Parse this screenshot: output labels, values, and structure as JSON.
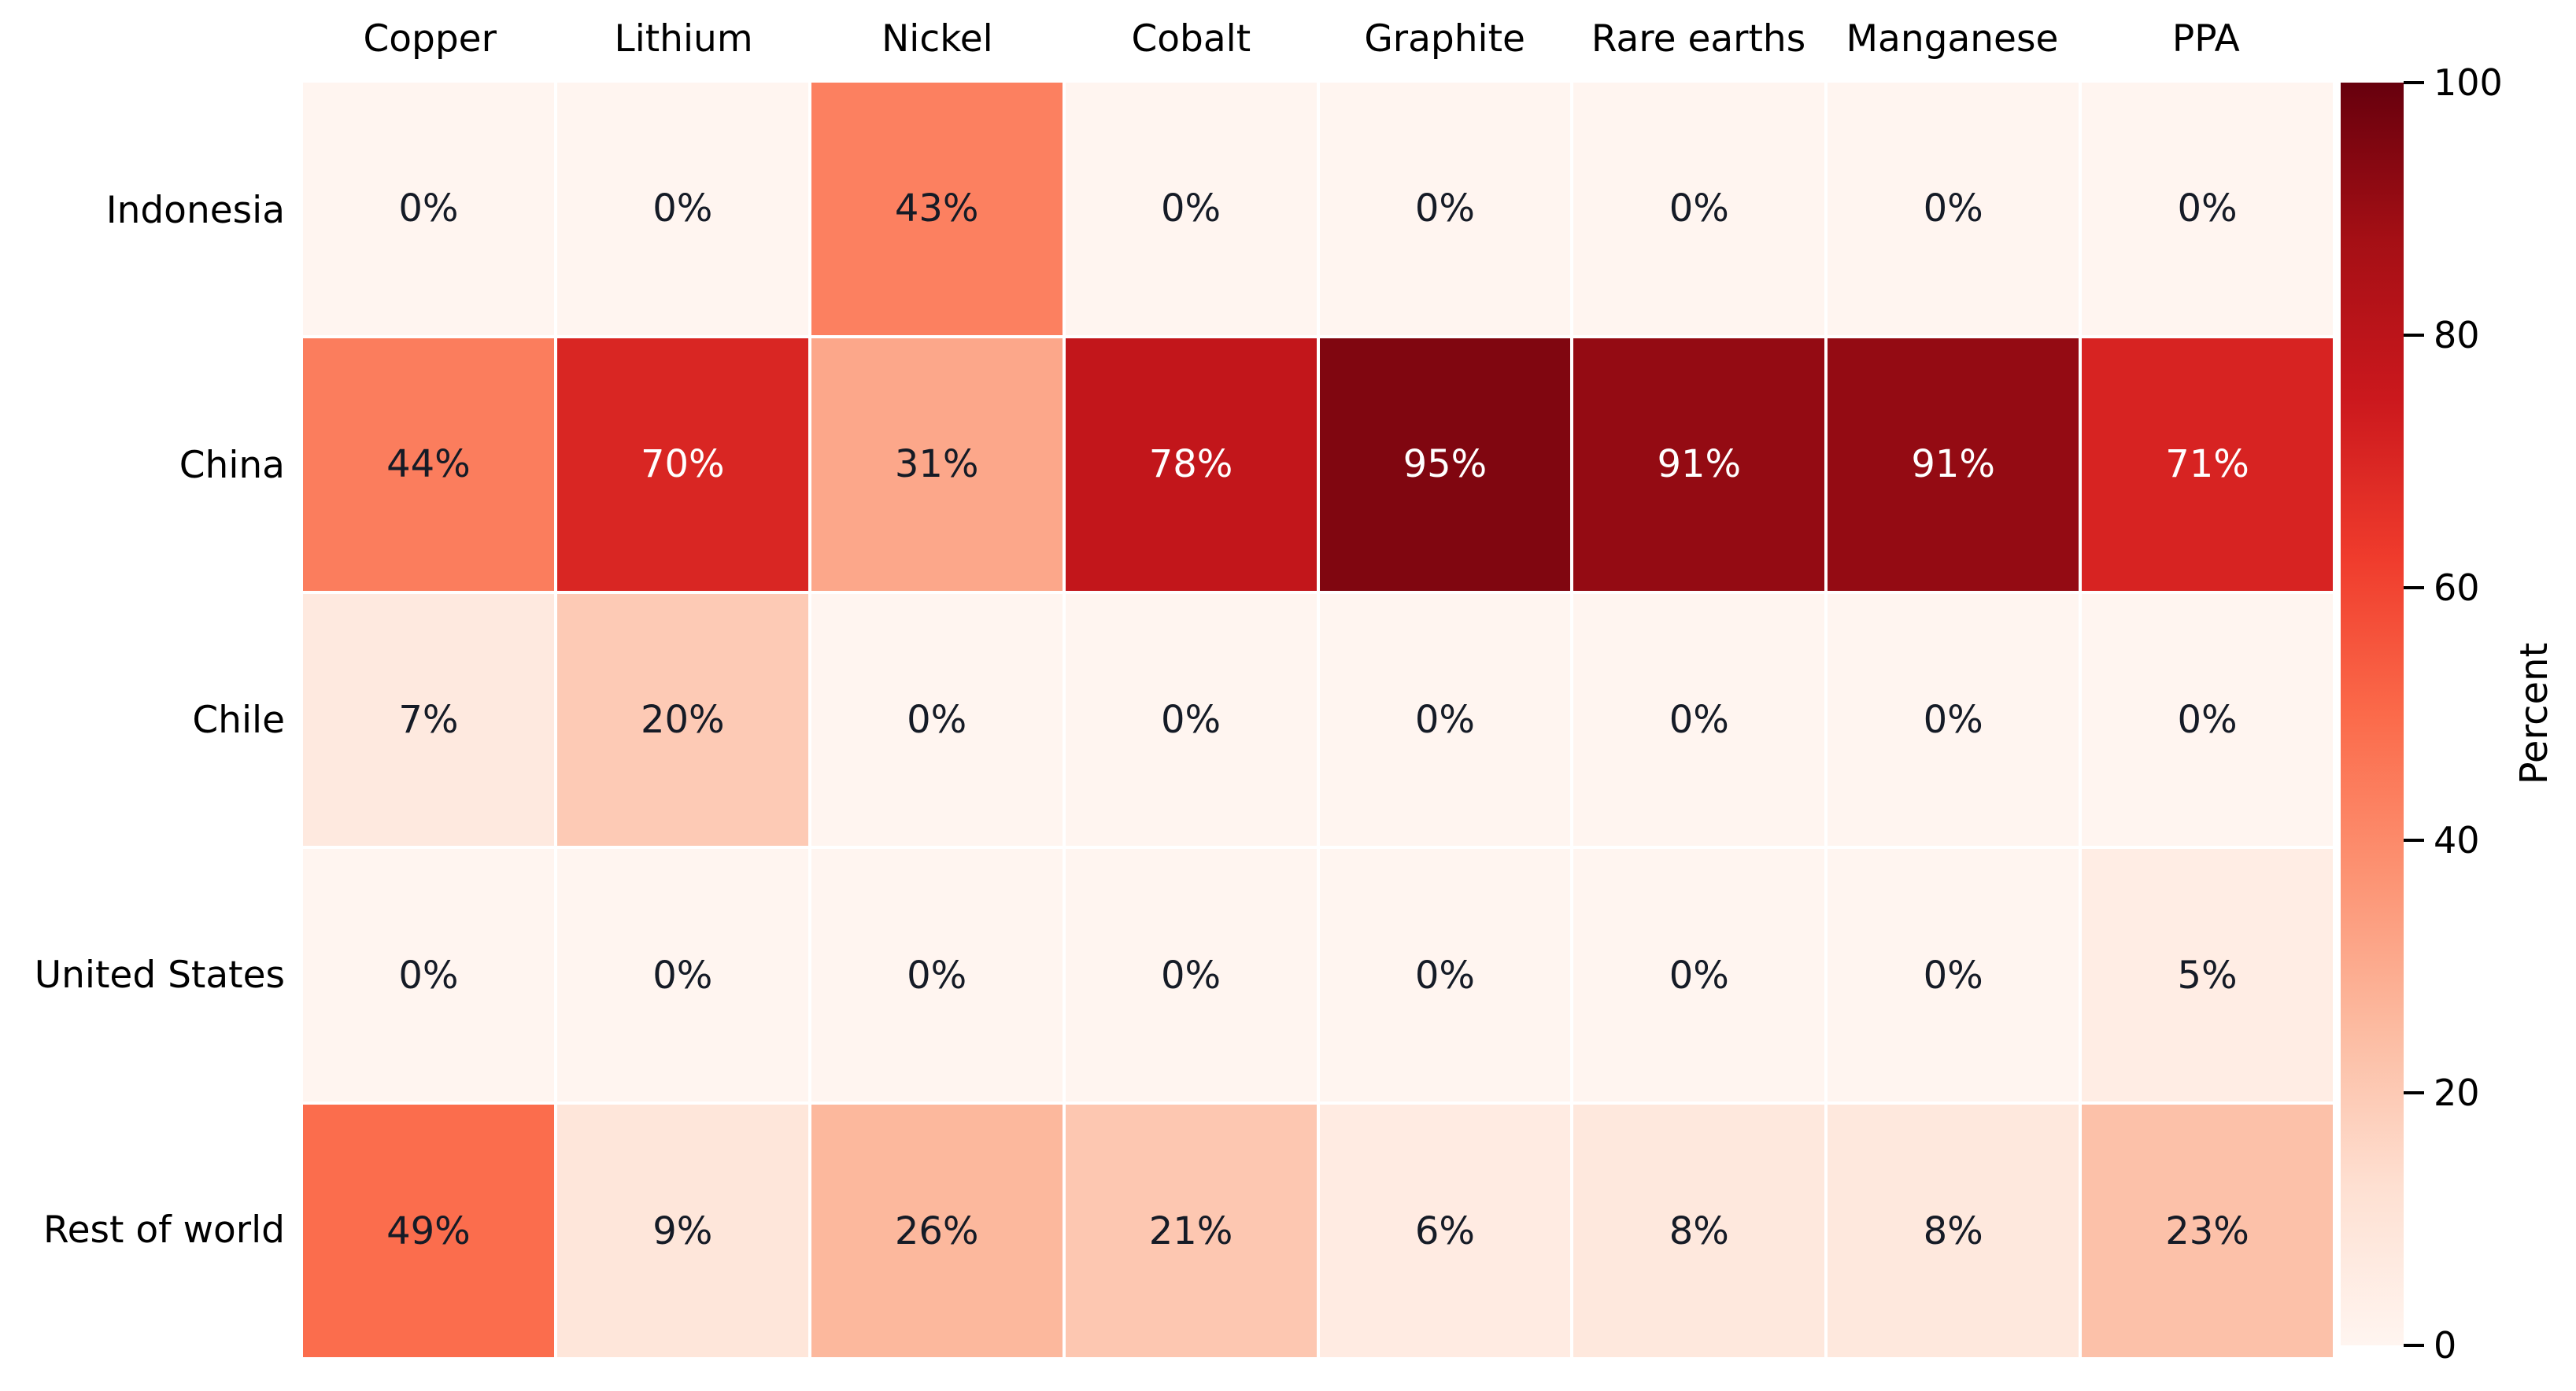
{
  "chart_data": {
    "type": "heatmap",
    "title": "",
    "columns": [
      "Copper",
      "Lithium",
      "Nickel",
      "Cobalt",
      "Graphite",
      "Rare earths",
      "Manganese",
      "PPA"
    ],
    "rows": [
      "Indonesia",
      "China",
      "Chile",
      "United States",
      "Rest of world"
    ],
    "values": [
      [
        0,
        0,
        43,
        0,
        0,
        0,
        0,
        0
      ],
      [
        44,
        70,
        31,
        78,
        95,
        91,
        91,
        71
      ],
      [
        7,
        20,
        0,
        0,
        0,
        0,
        0,
        0
      ],
      [
        0,
        0,
        0,
        0,
        0,
        0,
        0,
        5
      ],
      [
        49,
        9,
        26,
        21,
        6,
        8,
        8,
        23
      ]
    ],
    "value_suffix": "%",
    "value_range": [
      0,
      100
    ],
    "grid": "white-gridlines",
    "legend_position": "right-colorbar",
    "colorbar": {
      "label": "Percent",
      "ticks": [
        0,
        20,
        40,
        60,
        80,
        100
      ],
      "min": 0,
      "max": 100
    },
    "colormap": {
      "name": "Reds",
      "stops": [
        "#fff5f0",
        "#fee0d2",
        "#fcbba1",
        "#fc9272",
        "#fb6a4a",
        "#ef3b2c",
        "#cb181d",
        "#a50f15",
        "#67000d"
      ]
    },
    "colors": {
      "annotation_dark_text": "#151b26",
      "annotation_light_text": "#ffffff",
      "axis_text": "#000000",
      "background": "#ffffff",
      "gridline": "#ffffff"
    }
  }
}
